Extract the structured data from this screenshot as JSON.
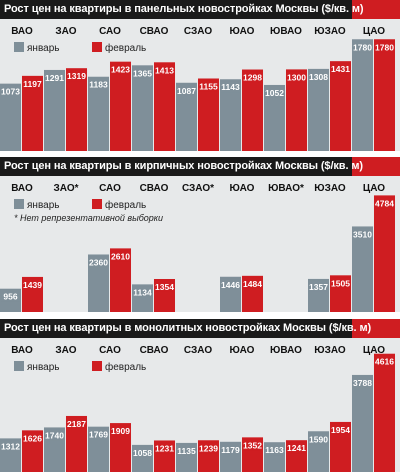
{
  "colors": {
    "january": "#7f8f99",
    "february": "#cf1d21",
    "band": "#cf1d21",
    "band_dark": "#1a1a1a",
    "panel_bg": "#e7e9ea"
  },
  "legend": {
    "jan": "январь",
    "feb": "февраль"
  },
  "chart_data": [
    {
      "type": "bar",
      "title": "Рост цен на квартиры в панельных новостройках Москвы ($/кв. м)",
      "categories": [
        "ВАО",
        "ЗАО",
        "САО",
        "СВАО",
        "СЗАО",
        "ЮАО",
        "ЮВАО",
        "ЮЗАО",
        "ЦАО"
      ],
      "series": [
        {
          "name": "январь",
          "values": [
            1073,
            1291,
            1183,
            1365,
            1087,
            1143,
            1052,
            1308,
            1780
          ]
        },
        {
          "name": "февраль",
          "values": [
            1197,
            1319,
            1423,
            1413,
            1155,
            1298,
            1300,
            1431,
            1780
          ]
        }
      ],
      "value_labels": {
        "jan": [
          "1073",
          "1291",
          "1183",
          "1365",
          "1087",
          "1143",
          "1052",
          "1308",
          "1780"
        ],
        "feb": [
          "1197",
          "1319",
          "1423",
          "1413",
          "1155",
          "1298",
          "1300",
          "1431",
          "1780"
        ]
      },
      "ylim": [
        0,
        1800
      ],
      "note": ""
    },
    {
      "type": "bar",
      "title": "Рост цен на квартиры в кирпичных новостройках Москвы ($/кв. м)",
      "categories": [
        "ВАО",
        "ЗАО*",
        "САО",
        "СВАО",
        "СЗАО*",
        "ЮАО",
        "ЮВАО*",
        "ЮЗАО",
        "ЦАО"
      ],
      "series": [
        {
          "name": "январь",
          "values": [
            956,
            null,
            2360,
            1134,
            null,
            1446,
            null,
            1357,
            3510
          ]
        },
        {
          "name": "февраль",
          "values": [
            1439,
            null,
            2610,
            1354,
            null,
            1484,
            null,
            1505,
            4784
          ]
        }
      ],
      "value_labels": {
        "jan": [
          "956",
          "",
          "2360",
          "1134",
          "",
          "1446",
          "",
          "1357",
          "3510"
        ],
        "feb": [
          "1439",
          "",
          "2610",
          "1354",
          "",
          "1484",
          "",
          "1505",
          "4784"
        ]
      },
      "ylim": [
        0,
        4800
      ],
      "note": "* Нет репрезентативной выборки"
    },
    {
      "type": "bar",
      "title": "Рост цен на квартиры в монолитных новостройках Москвы ($/кв. м)",
      "categories": [
        "ВАО",
        "ЗАО",
        "САО",
        "СВАО",
        "СЗАО",
        "ЮАО",
        "ЮВАО",
        "ЮЗАО",
        "ЦАО"
      ],
      "series": [
        {
          "name": "январь",
          "values": [
            1312,
            1740,
            1769,
            1058,
            1135,
            1179,
            1163,
            1590,
            3788
          ]
        },
        {
          "name": "февраль",
          "values": [
            1626,
            2187,
            1909,
            1231,
            1239,
            1352,
            1241,
            1954,
            4616
          ]
        }
      ],
      "value_labels": {
        "jan": [
          "1312",
          "1740",
          "1769",
          "1058",
          "1135",
          "1179",
          "1163",
          "1590",
          "3788"
        ],
        "feb": [
          "1626",
          "2187",
          "1909",
          "1231",
          "1239",
          "1352",
          "1241",
          "1954",
          "4616"
        ]
      },
      "ylim": [
        0,
        4800
      ],
      "note": ""
    }
  ]
}
